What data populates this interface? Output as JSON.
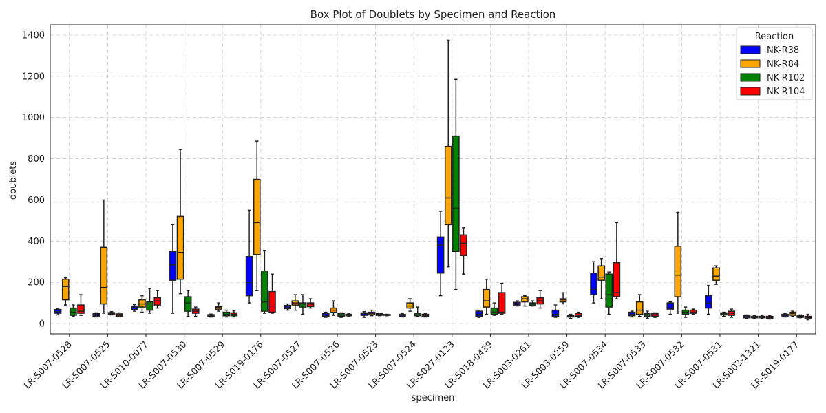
{
  "chart_data": {
    "type": "box",
    "title": "Box Plot of Doublets by Specimen and Reaction",
    "xlabel": "specimen",
    "ylabel": "doublets",
    "ylim": [
      -50,
      1450
    ],
    "yticks": [
      0,
      200,
      400,
      600,
      800,
      1000,
      1200,
      1400
    ],
    "grid": true,
    "legend": {
      "title": "Reaction",
      "placement": "top-right"
    },
    "series": [
      {
        "name": "NK-R38",
        "color": "#0000ff"
      },
      {
        "name": "NK-R84",
        "color": "#ffa500"
      },
      {
        "name": "NK-R102",
        "color": "#008000"
      },
      {
        "name": "NK-R104",
        "color": "#ff0000"
      }
    ],
    "categories": [
      "LR-S007-0528",
      "LR-S007-0525",
      "LR-S010-0077",
      "LR-S007-0530",
      "LR-S007-0529",
      "LR-S019-0176",
      "LR-S007-0527",
      "LR-S007-0526",
      "LR-S007-0523",
      "LR-S007-0524",
      "LR-S027-0123",
      "LR-S018-0439",
      "LR-S003-0261",
      "LR-S003-0259",
      "LR-S007-0534",
      "LR-S007-0533",
      "LR-S007-0532",
      "LR-S007-0531",
      "LR-S002-1321",
      "LR-S019-0177"
    ],
    "boxes": [
      [
        [
          42,
          50,
          58,
          68,
          72
        ],
        [
          90,
          115,
          180,
          215,
          222
        ],
        [
          35,
          40,
          55,
          75,
          90
        ],
        [
          40,
          50,
          60,
          90,
          140
        ]
      ],
      [
        [
          32,
          36,
          42,
          48,
          52
        ],
        [
          50,
          95,
          175,
          370,
          600
        ],
        [
          42,
          45,
          50,
          53,
          58
        ],
        [
          32,
          36,
          42,
          47,
          52
        ]
      ],
      [
        [
          60,
          68,
          80,
          85,
          92
        ],
        [
          55,
          80,
          95,
          115,
          135
        ],
        [
          50,
          65,
          95,
          105,
          170
        ],
        [
          75,
          90,
          110,
          125,
          160
        ]
      ],
      [
        [
          50,
          210,
          285,
          350,
          480
        ],
        [
          145,
          215,
          345,
          520,
          845
        ],
        [
          35,
          60,
          100,
          130,
          160
        ],
        [
          35,
          50,
          60,
          70,
          80
        ]
      ],
      [
        [
          32,
          36,
          40,
          43,
          46
        ],
        [
          60,
          70,
          78,
          82,
          100
        ],
        [
          32,
          38,
          45,
          55,
          65
        ],
        [
          32,
          38,
          45,
          52,
          62
        ]
      ],
      [
        [
          100,
          135,
          200,
          325,
          550
        ],
        [
          160,
          335,
          490,
          700,
          885
        ],
        [
          50,
          60,
          105,
          255,
          355
        ],
        [
          50,
          55,
          85,
          155,
          240
        ]
      ],
      [
        [
          65,
          72,
          80,
          88,
          95
        ],
        [
          65,
          90,
          100,
          110,
          140
        ],
        [
          45,
          80,
          95,
          100,
          140
        ],
        [
          75,
          82,
          95,
          100,
          120
        ]
      ],
      [
        [
          30,
          35,
          40,
          50,
          55
        ],
        [
          40,
          55,
          65,
          75,
          110
        ],
        [
          30,
          35,
          40,
          48,
          52
        ],
        [
          35,
          38,
          42,
          45,
          48
        ]
      ],
      [
        [
          30,
          40,
          48,
          52,
          58
        ],
        [
          38,
          42,
          48,
          55,
          65
        ],
        [
          38,
          40,
          44,
          48,
          50
        ],
        [
          38,
          40,
          42,
          44,
          45
        ]
      ],
      [
        [
          32,
          36,
          42,
          45,
          50
        ],
        [
          60,
          75,
          85,
          100,
          120
        ],
        [
          35,
          38,
          42,
          50,
          80
        ],
        [
          32,
          36,
          40,
          45,
          48
        ]
      ],
      [
        [
          135,
          245,
          380,
          420,
          545
        ],
        [
          275,
          480,
          610,
          860,
          1375
        ],
        [
          165,
          350,
          560,
          910,
          1185
        ],
        [
          240,
          330,
          390,
          430,
          465
        ]
      ],
      [
        [
          30,
          35,
          45,
          60,
          65
        ],
        [
          45,
          80,
          110,
          165,
          215
        ],
        [
          40,
          45,
          55,
          75,
          100
        ],
        [
          45,
          50,
          55,
          150,
          195
        ]
      ],
      [
        [
          85,
          90,
          97,
          103,
          110
        ],
        [
          85,
          105,
          120,
          130,
          135
        ],
        [
          85,
          88,
          95,
          100,
          110
        ],
        [
          75,
          95,
          110,
          125,
          160
        ]
      ],
      [
        [
          30,
          35,
          45,
          65,
          90
        ],
        [
          95,
          105,
          115,
          120,
          150
        ],
        [
          25,
          32,
          37,
          40,
          45
        ],
        [
          30,
          35,
          40,
          50,
          55
        ]
      ],
      [
        [
          100,
          140,
          165,
          245,
          300
        ],
        [
          120,
          210,
          225,
          280,
          315
        ],
        [
          45,
          80,
          140,
          240,
          250
        ],
        [
          120,
          130,
          150,
          295,
          490
        ]
      ],
      [
        [
          32,
          38,
          45,
          55,
          60
        ],
        [
          35,
          45,
          65,
          105,
          140
        ],
        [
          25,
          35,
          42,
          48,
          60
        ],
        [
          30,
          35,
          42,
          48,
          52
        ]
      ],
      [
        [
          45,
          70,
          85,
          100,
          105
        ],
        [
          50,
          130,
          235,
          375,
          540
        ],
        [
          30,
          45,
          55,
          65,
          80
        ],
        [
          45,
          50,
          55,
          65,
          70
        ]
      ],
      [
        [
          45,
          75,
          100,
          135,
          185
        ],
        [
          190,
          210,
          230,
          270,
          280
        ],
        [
          35,
          42,
          48,
          52,
          55
        ],
        [
          30,
          40,
          50,
          60,
          70
        ]
      ],
      [
        [
          25,
          28,
          32,
          38,
          42
        ],
        [
          25,
          28,
          32,
          35,
          38
        ],
        [
          25,
          28,
          32,
          35,
          38
        ],
        [
          22,
          25,
          30,
          35,
          40
        ]
      ],
      [
        [
          32,
          36,
          42,
          45,
          48
        ],
        [
          35,
          40,
          48,
          55,
          60
        ],
        [
          28,
          30,
          33,
          38,
          42
        ],
        [
          18,
          25,
          30,
          35,
          45
        ]
      ]
    ]
  }
}
